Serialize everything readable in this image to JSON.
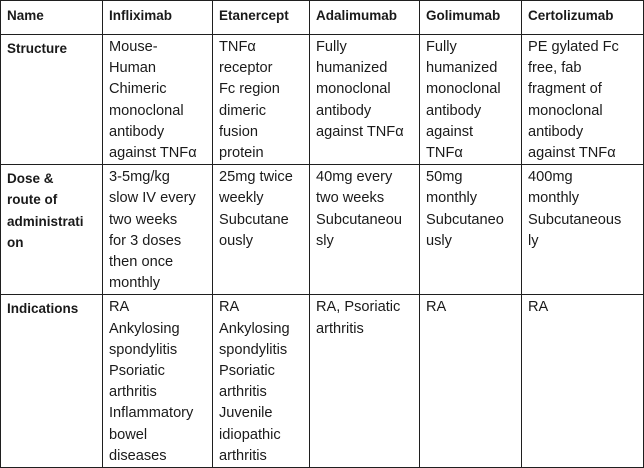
{
  "table": {
    "headers": [
      "Name",
      "Infliximab",
      "Etanercept",
      "Adalimumab",
      "Golimumab",
      "Certolizumab"
    ],
    "rows": [
      {
        "label": [
          "Structure"
        ],
        "cells": [
          [
            "Mouse-",
            "Human",
            "Chimeric",
            "monoclonal",
            "antibody",
            "against TNFα"
          ],
          [
            "TNFα",
            "receptor",
            "Fc region",
            "dimeric",
            "fusion",
            "protein"
          ],
          [
            "Fully",
            "humanized",
            "monoclonal",
            "antibody",
            "against TNFα"
          ],
          [
            "Fully",
            "humanized",
            "monoclonal",
            "antibody",
            "against",
            "TNFα"
          ],
          [
            "PE gylated Fc",
            "free, fab",
            "fragment of",
            "monoclonal",
            "antibody",
            "against TNFα"
          ]
        ]
      },
      {
        "label": [
          "Dose &",
          "route of",
          "administrati",
          "on"
        ],
        "cells": [
          [
            "3-5mg/kg",
            "slow IV every",
            "two weeks",
            "for 3 doses",
            "then once",
            "monthly"
          ],
          [
            "25mg twice",
            "weekly",
            "Subcutane",
            "ously"
          ],
          [
            "40mg every",
            "two weeks",
            "Subcutaneou",
            "sly"
          ],
          [
            "50mg",
            "monthly",
            "Subcutaneo",
            "usly"
          ],
          [
            "400mg",
            "monthly",
            "Subcutaneous",
            "ly"
          ]
        ]
      },
      {
        "label": [
          "Indications"
        ],
        "cells": [
          [
            "RA",
            "Ankylosing",
            "spondylitis",
            "Psoriatic",
            "arthritis",
            "Inflammatory",
            "bowel",
            "diseases"
          ],
          [
            "RA",
            "Ankylosing",
            "spondylitis",
            "Psoriatic",
            "arthritis",
            "Juvenile",
            "idiopathic",
            "arthritis"
          ],
          [
            "RA, Psoriatic",
            "arthritis"
          ],
          [
            "RA"
          ],
          [
            "RA"
          ]
        ]
      }
    ]
  }
}
